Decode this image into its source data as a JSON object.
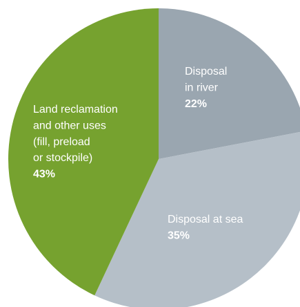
{
  "chart_data": {
    "type": "pie",
    "categories": [
      [
        "Disposal",
        "in river"
      ],
      [
        "Disposal at sea"
      ],
      [
        "Land reclamation",
        "and other uses",
        "(fill, preload",
        "or stockpile)"
      ]
    ],
    "values": [
      22,
      35,
      43
    ],
    "value_labels": [
      "22%",
      "35%",
      "43%"
    ],
    "colors": [
      "#9aa6b0",
      "#b5bfc8",
      "#76a22f"
    ]
  }
}
